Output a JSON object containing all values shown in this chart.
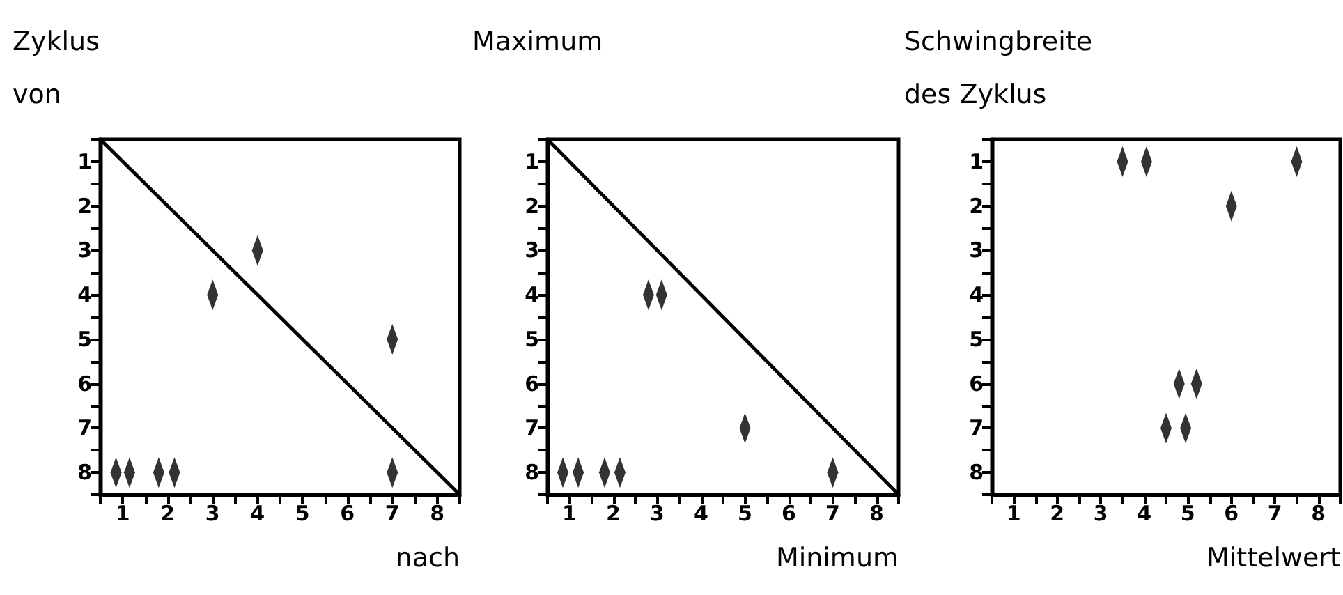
{
  "chart_data": [
    {
      "type": "scatter",
      "xlabel": "nach",
      "ylabel": "Zyklus\nvon",
      "grid": false,
      "xlim": [
        0.5,
        8.5
      ],
      "ylim": [
        8.5,
        0.5
      ],
      "xticks": [
        {
          "value": 0.5,
          "label": null
        },
        1,
        {
          "value": 1.5,
          "label": null
        },
        2,
        {
          "value": 2.5,
          "label": null
        },
        3,
        {
          "value": 3.5,
          "label": null
        },
        4,
        {
          "value": 4.5,
          "label": null
        },
        5,
        {
          "value": 5.5,
          "label": null
        },
        6,
        {
          "value": 6.5,
          "label": null
        },
        7,
        {
          "value": 7.5,
          "label": null
        },
        8,
        {
          "value": 8.5,
          "label": null
        }
      ],
      "yticks": [
        {
          "value": 0.5,
          "label": null
        },
        1,
        {
          "value": 1.5,
          "label": null
        },
        2,
        {
          "value": 2.5,
          "label": null
        },
        3,
        {
          "value": 3.5,
          "label": null
        },
        4,
        {
          "value": 4.5,
          "label": null
        },
        5,
        {
          "value": 5.5,
          "label": null
        },
        6,
        {
          "value": 6.5,
          "label": null
        },
        7,
        {
          "value": 7.5,
          "label": null
        },
        8,
        {
          "value": 8.5,
          "label": null
        }
      ],
      "series": [
        {
          "type": "scatter",
          "marker": "diamond",
          "color": "#000000",
          "x": [
            0.85,
            1.15,
            1.8,
            2.15,
            4,
            3,
            7,
            7
          ],
          "values": [
            8,
            8,
            8,
            8,
            3,
            4,
            5,
            8
          ]
        },
        {
          "type": "line",
          "color": "#000000",
          "x": [
            0.5,
            8.5
          ],
          "values": [
            0.5,
            8.5
          ]
        }
      ]
    },
    {
      "type": "scatter",
      "xlabel": "Minimum",
      "ylabel": "Maximum",
      "grid": false,
      "xlim": [
        0.5,
        8.5
      ],
      "ylim": [
        8.5,
        0.5
      ],
      "xticks": [
        {
          "value": 0.5,
          "label": null
        },
        1,
        {
          "value": 1.5,
          "label": null
        },
        2,
        {
          "value": 2.5,
          "label": null
        },
        3,
        {
          "value": 3.5,
          "label": null
        },
        4,
        {
          "value": 4.5,
          "label": null
        },
        5,
        {
          "value": 5.5,
          "label": null
        },
        6,
        {
          "value": 6.5,
          "label": null
        },
        7,
        {
          "value": 7.5,
          "label": null
        },
        8,
        {
          "value": 8.5,
          "label": null
        }
      ],
      "yticks": [
        {
          "value": 0.5,
          "label": null
        },
        1,
        {
          "value": 1.5,
          "label": null
        },
        2,
        {
          "value": 2.5,
          "label": null
        },
        3,
        {
          "value": 3.5,
          "label": null
        },
        4,
        {
          "value": 4.5,
          "label": null
        },
        5,
        {
          "value": 5.5,
          "label": null
        },
        6,
        {
          "value": 6.5,
          "label": null
        },
        7,
        {
          "value": 7.5,
          "label": null
        },
        8,
        {
          "value": 8.5,
          "label": null
        }
      ],
      "series": [
        {
          "type": "scatter",
          "marker": "diamond",
          "color": "#000000",
          "x": [
            2.8,
            3.1,
            5,
            0.85,
            1.2,
            1.8,
            2.15,
            7
          ],
          "values": [
            4,
            4,
            7,
            8,
            8,
            8,
            8,
            8
          ]
        },
        {
          "type": "line",
          "color": "#000000",
          "x": [
            0.5,
            8.5
          ],
          "values": [
            0.5,
            8.5
          ]
        }
      ]
    },
    {
      "type": "scatter",
      "xlabel": "Mittelwert",
      "ylabel": "Schwingbreite\ndes Zyklus",
      "grid": false,
      "xlim": [
        0.5,
        8.5
      ],
      "ylim": [
        8.5,
        0.5
      ],
      "xticks": [
        {
          "value": 0.5,
          "label": null
        },
        1,
        {
          "value": 1.5,
          "label": null
        },
        2,
        {
          "value": 2.5,
          "label": null
        },
        3,
        {
          "value": 3.5,
          "label": null
        },
        4,
        {
          "value": 4.5,
          "label": null
        },
        5,
        {
          "value": 5.5,
          "label": null
        },
        6,
        {
          "value": 6.5,
          "label": null
        },
        7,
        {
          "value": 7.5,
          "label": null
        },
        8,
        {
          "value": 8.5,
          "label": null
        }
      ],
      "yticks": [
        {
          "value": 0.5,
          "label": null
        },
        1,
        {
          "value": 1.5,
          "label": null
        },
        2,
        {
          "value": 2.5,
          "label": null
        },
        3,
        {
          "value": 3.5,
          "label": null
        },
        4,
        {
          "value": 4.5,
          "label": null
        },
        5,
        {
          "value": 5.5,
          "label": null
        },
        6,
        {
          "value": 6.5,
          "label": null
        },
        7,
        {
          "value": 7.5,
          "label": null
        },
        8,
        {
          "value": 8.5,
          "label": null
        }
      ],
      "series": [
        {
          "type": "scatter",
          "marker": "diamond",
          "color": "#000000",
          "x": [
            3.5,
            4.05,
            7.5,
            6,
            4.8,
            5.2,
            4.5,
            4.95
          ],
          "values": [
            1,
            1,
            1,
            2,
            6,
            6,
            7,
            7
          ]
        }
      ]
    }
  ]
}
